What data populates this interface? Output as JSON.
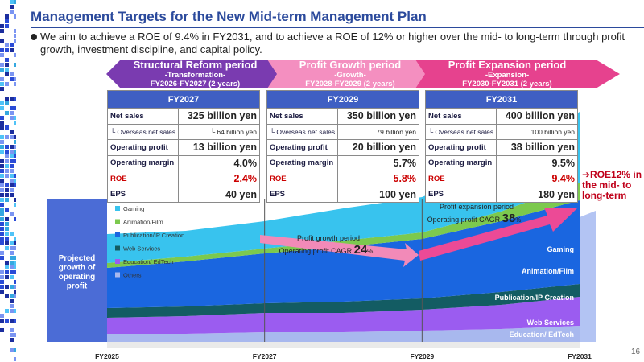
{
  "header": {
    "title": "Management Targets for the New Mid-term Management Plan",
    "bullet": "We aim to achieve a ROE of 9.4% in FY2031, and to achieve a ROE of 12% or higher over the mid- to long-term through profit growth, investment discipline, and capital policy."
  },
  "phases": [
    {
      "name": "Structural Reform period",
      "sub1": "-Transformation-",
      "sub2": "FY2026-FY2027 (2 years)",
      "color": "#7a3bb0"
    },
    {
      "name": "Profit Growth period",
      "sub1": "-Growth-",
      "sub2": "FY2028-FY2029 (2 years)",
      "color": "#f48fc0"
    },
    {
      "name": "Profit Expansion period",
      "sub1": "-Expansion-",
      "sub2": "FY2030-FY2031 (2 years)",
      "color": "#e6428e"
    }
  ],
  "tables": [
    {
      "year": "FY2027",
      "rows": [
        {
          "label": "Net sales",
          "value": "325 billion yen"
        },
        {
          "label": "└ Overseas net sales",
          "value": "└ 64 billion yen"
        },
        {
          "label": "Operating profit",
          "value": "13 billion yen"
        },
        {
          "label": "Operating margin",
          "value": "4.0%"
        },
        {
          "label": "ROE",
          "value": "2.4%"
        },
        {
          "label": "EPS",
          "value": "40 yen"
        }
      ]
    },
    {
      "year": "FY2029",
      "rows": [
        {
          "label": "Net sales",
          "value": "350 billion yen"
        },
        {
          "label": "└ Overseas net sales",
          "value": "79 billion yen"
        },
        {
          "label": "Operating profit",
          "value": "20 billion yen"
        },
        {
          "label": "Operating margin",
          "value": "5.7%"
        },
        {
          "label": "ROE",
          "value": "5.8%"
        },
        {
          "label": "EPS",
          "value": "100 yen"
        }
      ]
    },
    {
      "year": "FY2031",
      "rows": [
        {
          "label": "Net sales",
          "value": "400 billion yen"
        },
        {
          "label": "└ Overseas net sales",
          "value": "100 billion yen"
        },
        {
          "label": "Operating profit",
          "value": "38 billion yen"
        },
        {
          "label": "Operating margin",
          "value": "9.5%"
        },
        {
          "label": "ROE",
          "value": "9.4%"
        },
        {
          "label": "EPS",
          "value": "180 yen"
        }
      ]
    }
  ],
  "roe_note": "➔ROE12% in the mid- to long-term",
  "page_number": "16",
  "chart_data": {
    "type": "area",
    "ylabel": "Projected growth of operating profit",
    "categories": [
      "FY2025",
      "FY2027",
      "FY2029",
      "FY2031"
    ],
    "x": [
      2025,
      2026,
      2027,
      2028,
      2029,
      2030,
      2031
    ],
    "series": [
      {
        "name": "Others",
        "values": [
          0.5,
          0.5,
          0.6,
          0.6,
          0.7,
          0.8,
          1.0
        ],
        "color": "#a8b8ee"
      },
      {
        "name": "Education/ EdTech",
        "values": [
          1.0,
          1.1,
          1.2,
          1.2,
          1.3,
          1.5,
          1.8
        ],
        "color": "#9b5cf0"
      },
      {
        "name": "Web Services",
        "values": [
          0.6,
          0.6,
          0.6,
          0.7,
          0.7,
          0.8,
          0.8
        ],
        "color": "#135c63"
      },
      {
        "name": "Publication/IP Creation",
        "values": [
          2.5,
          2.8,
          3.1,
          3.4,
          3.7,
          4.4,
          5.2
        ],
        "color": "#1a66e0"
      },
      {
        "name": "Animation/Film",
        "values": [
          0.3,
          0.3,
          0.3,
          0.4,
          0.4,
          0.6,
          1.1
        ],
        "color": "#7cc94e"
      },
      {
        "name": "Gaming",
        "values": [
          1.8,
          1.6,
          1.7,
          2.0,
          2.2,
          3.0,
          4.4
        ],
        "color": "#38c3ee"
      }
    ],
    "annotations": [
      {
        "label1": "Profit growth period",
        "label2": "Operating profit CAGR",
        "value": "24",
        "unit": "%"
      },
      {
        "label1": "Profit expansion period",
        "label2": "Operating profit CAGR",
        "value": "38",
        "unit": "%"
      }
    ],
    "area_labels": [
      "Gaming",
      "Animation/Film",
      "Publication/IP Creation",
      "Web Services",
      "Education/ EdTech"
    ],
    "grid": false,
    "legend": "top-left"
  }
}
